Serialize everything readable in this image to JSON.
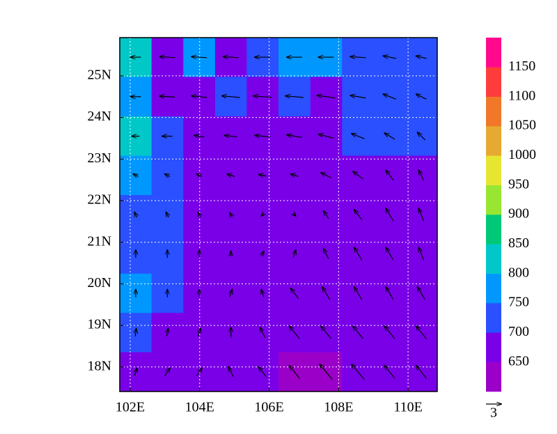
{
  "chart_data": {
    "type": "vector-contour-map",
    "xlim": [
      101.7,
      110.84
    ],
    "ylim": [
      17.41,
      25.92
    ],
    "xticks": [
      {
        "value": 102,
        "label": "102E"
      },
      {
        "value": 104,
        "label": "104E"
      },
      {
        "value": 106,
        "label": "106E"
      },
      {
        "value": 108,
        "label": "108E"
      },
      {
        "value": 110,
        "label": "110E"
      }
    ],
    "yticks": [
      {
        "value": 18,
        "label": "18N"
      },
      {
        "value": 19,
        "label": "19N"
      },
      {
        "value": 20,
        "label": "20N"
      },
      {
        "value": 21,
        "label": "21N"
      },
      {
        "value": 22,
        "label": "22N"
      },
      {
        "value": 23,
        "label": "23N"
      },
      {
        "value": 24,
        "label": "24N"
      },
      {
        "value": 25,
        "label": "25N"
      }
    ],
    "grid": true,
    "levels": [
      650,
      700,
      750,
      800,
      850,
      900,
      950,
      1000,
      1050,
      1100,
      1150
    ],
    "colors": [
      "#9b00c8",
      "#7a00e8",
      "#2a50ff",
      "#0098ff",
      "#00c8c8",
      "#00c878",
      "#98e632",
      "#e6e632",
      "#e6aa32",
      "#f07828",
      "#ff3c3c",
      "#ff0a8c"
    ],
    "x": [
      102.16,
      103.07,
      103.99,
      104.9,
      105.81,
      106.73,
      107.64,
      108.56,
      109.47,
      110.38
    ],
    "y": [
      25.45,
      24.5,
      23.55,
      22.61,
      21.66,
      20.72,
      19.77,
      18.83,
      17.88
    ],
    "field": [
      [
        820,
        690,
        760,
        680,
        720,
        780,
        760,
        700,
        730,
        720
      ],
      [
        760,
        690,
        680,
        730,
        690,
        700,
        690,
        720,
        720,
        720
      ],
      [
        800,
        700,
        690,
        680,
        690,
        690,
        690,
        720,
        720,
        720
      ],
      [
        780,
        730,
        690,
        690,
        690,
        690,
        690,
        690,
        690,
        690
      ],
      [
        740,
        700,
        680,
        680,
        680,
        680,
        680,
        680,
        680,
        680
      ],
      [
        730,
        720,
        680,
        680,
        680,
        680,
        680,
        680,
        680,
        680
      ],
      [
        760,
        730,
        680,
        680,
        680,
        680,
        680,
        680,
        680,
        680
      ],
      [
        740,
        690,
        690,
        680,
        680,
        680,
        670,
        680,
        680,
        680
      ],
      [
        680,
        680,
        680,
        670,
        660,
        640,
        640,
        650,
        660,
        680
      ]
    ],
    "u": [
      [
        -2,
        -3,
        -3,
        -3,
        -3,
        -3,
        -3,
        -3,
        -2.5,
        -2
      ],
      [
        -2,
        -3,
        -3,
        -3.5,
        -3.5,
        -3.5,
        -3.5,
        -3,
        -2.5,
        -2
      ],
      [
        -1.5,
        -2,
        -2,
        -2.5,
        -3,
        -3,
        -3,
        -2.5,
        -2,
        -1.5
      ],
      [
        -1,
        -1,
        -1,
        -1.5,
        -1.5,
        -1.5,
        -2,
        -2,
        -1.5,
        -1
      ],
      [
        -0.5,
        -0.5,
        -0.5,
        -0.5,
        -0.5,
        0.5,
        -1,
        -1.5,
        -1.5,
        -1
      ],
      [
        0,
        0,
        0,
        0,
        0.5,
        0.5,
        -1,
        -1.5,
        -1.5,
        -1
      ],
      [
        0,
        0,
        0,
        0.5,
        -0.5,
        -1.5,
        -1.5,
        -1.5,
        -1.5,
        -1.5
      ],
      [
        0.2,
        0.3,
        0.5,
        0,
        -1,
        -2,
        -2,
        -2,
        -2,
        -2
      ],
      [
        0.5,
        1,
        1,
        -1,
        -1.5,
        -2,
        -2.5,
        -2.5,
        -2,
        -2
      ]
    ],
    "v": [
      [
        0,
        0.2,
        0.2,
        0.2,
        0,
        0,
        0,
        0.2,
        0.5,
        0.5
      ],
      [
        0,
        0.2,
        0.3,
        0.3,
        0.3,
        0.3,
        0.5,
        0.5,
        1,
        1
      ],
      [
        0,
        0,
        0.3,
        0.3,
        0.3,
        0.5,
        0.8,
        1,
        1.2,
        1.5
      ],
      [
        0.5,
        0.5,
        0.5,
        0.5,
        0.3,
        0.5,
        1,
        1.5,
        2,
        2
      ],
      [
        1,
        1,
        1,
        0.8,
        -0.5,
        -0.5,
        1.5,
        2,
        2.5,
        2.5
      ],
      [
        1.5,
        1.5,
        1.5,
        1,
        1,
        1.5,
        2,
        2.5,
        2.5,
        2.5
      ],
      [
        1.5,
        1.5,
        1.5,
        1.5,
        1.5,
        2,
        2.5,
        2.5,
        2.5,
        2.5
      ],
      [
        1.5,
        1.5,
        1.5,
        2,
        2,
        2.5,
        2.5,
        2.5,
        2.5,
        2.5
      ],
      [
        1.5,
        1.5,
        1.5,
        2,
        2,
        2.5,
        3,
        3,
        2.5,
        2.5
      ]
    ],
    "vector_reference": 3
  }
}
